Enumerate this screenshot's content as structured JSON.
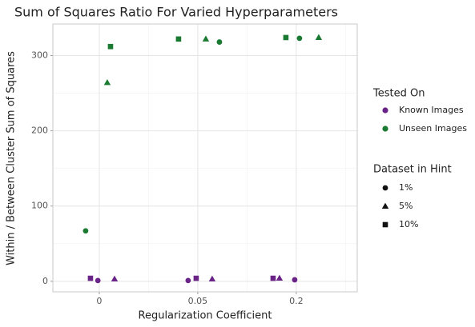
{
  "chart_data": {
    "type": "scatter",
    "title": "Sum of Squares Ratio For Varied Hyperparameters",
    "x_label": "Regularization Coefficient",
    "y_label": "Within / Between Cluster Sum of Squares",
    "xscale": "sqrt",
    "xlim": [
      -0.0111,
      0.343
    ],
    "xticks": [
      0,
      {
        "value": 0.05,
        "label": "0.05"
      },
      {
        "value": 0.2,
        "label": "0.2"
      }
    ],
    "xminor": [
      0.0125,
      0.1125,
      0.3126
    ],
    "ylim": [
      -14,
      342
    ],
    "yticks": [
      0,
      100,
      200,
      300
    ],
    "yminor": [
      50,
      150,
      250
    ],
    "grid": true,
    "legend_title": "Tested On",
    "shape_legend": {
      "title": "Dataset in Hint",
      "labels": [
        "1%",
        "5%",
        "10%"
      ],
      "shapes": [
        "circle",
        "triangle",
        "square"
      ]
    },
    "series": [
      {
        "name": "Known Images",
        "color": "#6a2487",
        "x": [
          -0.0004,
          -1e-05,
          0.0012,
          0.0407,
          0.0484,
          0.0657,
          0.1557,
          0.1674,
          0.1968
        ],
        "values": [
          4,
          1,
          3,
          1,
          4,
          3,
          4,
          4,
          2
        ],
        "shapes": [
          "square",
          "circle",
          "triangle",
          "circle",
          "square",
          "triangle",
          "square",
          "triangle",
          "circle"
        ]
      },
      {
        "name": "Unseen Images",
        "color": "#1b7a32",
        "x": [
          -0.00096,
          0.00033,
          0.00065,
          0.0324,
          0.0585,
          0.0744,
          0.1795,
          0.2066,
          0.2482
        ],
        "values": [
          67,
          264,
          312,
          322,
          322,
          318,
          324,
          323,
          324
        ],
        "shapes": [
          "circle",
          "triangle",
          "square",
          "square",
          "triangle",
          "circle",
          "square",
          "circle",
          "triangle"
        ]
      }
    ]
  }
}
